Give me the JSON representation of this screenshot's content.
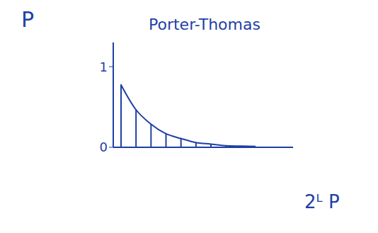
{
  "chart_data": {
    "type": "bar",
    "title": "Porter-Thomas",
    "x_label": "2ᴸ P",
    "y_label": "P",
    "x": [
      0.25,
      0.75,
      1.25,
      1.75,
      2.25,
      2.75,
      3.25,
      3.75,
      4.25,
      4.75
    ],
    "series": [
      {
        "type": "bar",
        "color": "#1f3fa6",
        "values": [
          0.78,
          0.47,
          0.29,
          0.17,
          0.11,
          0.06,
          0.04,
          0.02,
          0.015,
          0.01
        ]
      },
      {
        "type": "line",
        "color": "#1f3fa6",
        "line_style": "solid",
        "values": [
          0.78,
          0.47,
          0.29,
          0.17,
          0.11,
          0.06,
          0.04,
          0.02,
          0.015,
          0.01
        ]
      }
    ],
    "xlim": [
      0,
      6
    ],
    "ylim": [
      0,
      1.3
    ],
    "yticks": [
      0,
      1
    ],
    "tick_labels": "y",
    "grid": false
  }
}
